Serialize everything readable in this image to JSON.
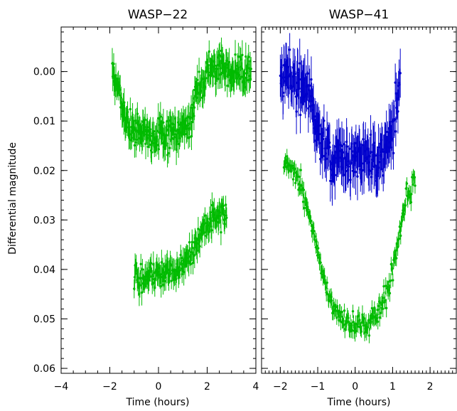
{
  "chart_data": [
    {
      "type": "scatter",
      "title": "WASP−22",
      "xlabel": "Time (hours)",
      "ylabel": "Differential magnitude",
      "xlim": [
        -4,
        4
      ],
      "ylim": [
        0.061,
        -0.009
      ],
      "y_inverted": true,
      "xticks": [
        -4,
        -2,
        0,
        2,
        4
      ],
      "xtick_labels": [
        "−4",
        "−2",
        "0",
        "2",
        "4"
      ],
      "yticks": [
        0.0,
        0.01,
        0.02,
        0.03,
        0.04,
        0.05,
        0.06
      ],
      "ytick_labels": [
        "0.00",
        "0.01",
        "0.02",
        "0.03",
        "0.04",
        "0.05",
        "0.06"
      ],
      "error_bars": true,
      "series": [
        {
          "color": "#00bb00",
          "x_range": [
            -1.9,
            3.8
          ],
          "x": [
            -1.9,
            -1.6,
            -1.3,
            -1.0,
            -0.6,
            -0.2,
            0.2,
            0.6,
            1.0,
            1.3,
            1.6,
            2.0,
            2.5,
            3.0,
            3.5,
            3.8
          ],
          "y": [
            0.0,
            0.005,
            0.011,
            0.012,
            0.0125,
            0.013,
            0.013,
            0.0125,
            0.012,
            0.01,
            0.004,
            0.0,
            -0.001,
            0.0,
            0.0,
            -0.0005
          ],
          "scatter": 0.0016,
          "err": 0.0025
        },
        {
          "color": "#00bb00",
          "x_range": [
            -1.0,
            2.8
          ],
          "x": [
            -1.0,
            -0.5,
            0.0,
            0.5,
            1.0,
            1.3,
            1.6,
            2.0,
            2.4,
            2.8
          ],
          "y": [
            0.041,
            0.0415,
            0.041,
            0.0405,
            0.039,
            0.037,
            0.034,
            0.031,
            0.029,
            0.029
          ],
          "scatter": 0.0014,
          "err": 0.0022
        }
      ]
    },
    {
      "type": "scatter",
      "title": "WASP−41",
      "xlabel": "Time (hours)",
      "ylabel": "",
      "xlim": [
        -2.5,
        2.7
      ],
      "ylim": [
        0.061,
        -0.009
      ],
      "y_inverted": true,
      "xticks": [
        -2,
        -1,
        0,
        1,
        2
      ],
      "xtick_labels": [
        "−2",
        "−1",
        "0",
        "1",
        "2"
      ],
      "yticks": [
        0.0,
        0.01,
        0.02,
        0.03,
        0.04,
        0.05,
        0.06
      ],
      "error_bars": true,
      "series": [
        {
          "color": "#0000cc",
          "x_range": [
            -2.0,
            1.2
          ],
          "x": [
            -2.0,
            -1.7,
            -1.4,
            -1.2,
            -1.0,
            -0.8,
            -0.5,
            0.0,
            0.5,
            0.8,
            1.0,
            1.2
          ],
          "y": [
            0.0,
            0.001,
            0.002,
            0.005,
            0.011,
            0.016,
            0.018,
            0.018,
            0.018,
            0.016,
            0.012,
            0.004
          ],
          "scatter": 0.0025,
          "err": 0.004
        },
        {
          "color": "#00bb00",
          "x_range": [
            -1.9,
            1.6
          ],
          "x": [
            -1.9,
            -1.6,
            -1.4,
            -1.2,
            -1.0,
            -0.8,
            -0.6,
            -0.3,
            0.0,
            0.3,
            0.6,
            0.9,
            1.1,
            1.3,
            1.6
          ],
          "y": [
            0.018,
            0.021,
            0.024,
            0.029,
            0.036,
            0.043,
            0.048,
            0.051,
            0.0515,
            0.051,
            0.049,
            0.044,
            0.037,
            0.027,
            0.022
          ],
          "scatter": 0.0012,
          "err": 0.0015
        }
      ]
    }
  ]
}
